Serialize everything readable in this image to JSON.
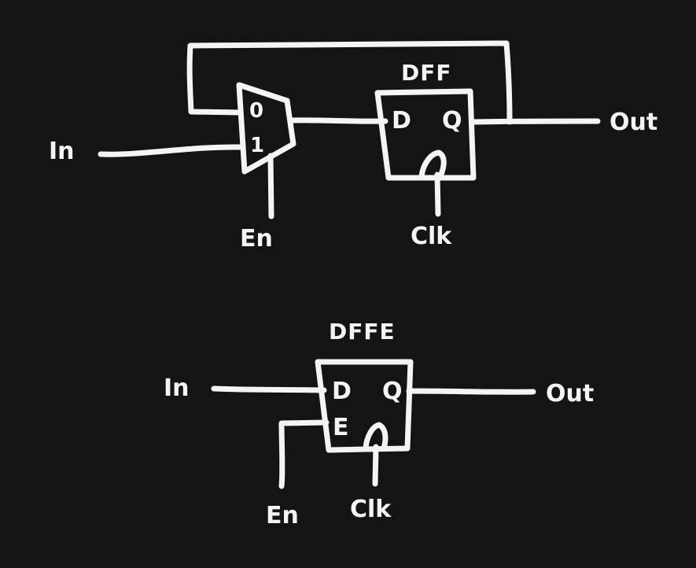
{
  "top_circuit": {
    "input_label": "In",
    "enable_label": "En",
    "clock_label": "Clk",
    "output_label": "Out",
    "mux": {
      "input0_label": "0",
      "input1_label": "1"
    },
    "dff": {
      "title": "DFF",
      "d_label": "D",
      "q_label": "Q"
    }
  },
  "bottom_circuit": {
    "input_label": "In",
    "enable_label": "En",
    "clock_label": "Clk",
    "output_label": "Out",
    "dffe": {
      "title": "DFFE",
      "d_label": "D",
      "e_label": "E",
      "q_label": "Q"
    }
  },
  "colors": {
    "background": "#141414",
    "stroke": "#f4f4f4"
  }
}
